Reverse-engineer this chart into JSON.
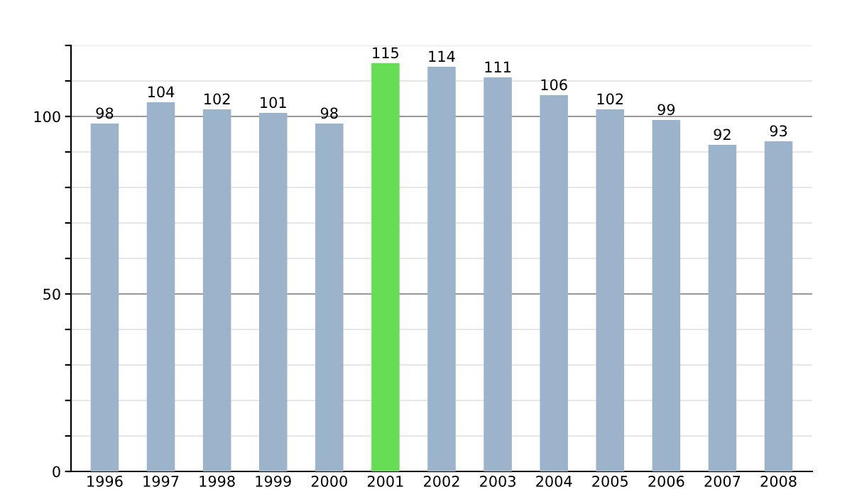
{
  "chart_data": {
    "type": "bar",
    "categories": [
      "1996",
      "1997",
      "1998",
      "1999",
      "2000",
      "2001",
      "2002",
      "2003",
      "2004",
      "2005",
      "2006",
      "2007",
      "2008"
    ],
    "values": [
      98,
      104,
      102,
      101,
      98,
      115,
      114,
      111,
      106,
      102,
      99,
      92,
      93
    ],
    "colors": [
      "#9cb3cc",
      "#9cb3cc",
      "#9cb3cc",
      "#9cb3cc",
      "#9cb3cc",
      "#66dd55",
      "#9cb3cc",
      "#9cb3cc",
      "#9cb3cc",
      "#9cb3cc",
      "#9cb3cc",
      "#9cb3cc",
      "#9cb3cc"
    ],
    "data_labels": true,
    "ylim": [
      0,
      120
    ],
    "yticks": [
      0,
      {
        "value": 10,
        "label": null
      },
      {
        "value": 20,
        "label": null
      },
      {
        "value": 30,
        "label": null
      },
      {
        "value": 40,
        "label": null
      },
      50,
      {
        "value": 60,
        "label": null
      },
      {
        "value": 70,
        "label": null
      },
      {
        "value": 80,
        "label": null
      },
      {
        "value": 90,
        "label": null
      },
      100,
      {
        "value": 110,
        "label": null
      },
      {
        "value": 120,
        "label": null
      }
    ],
    "grid": "y"
  }
}
